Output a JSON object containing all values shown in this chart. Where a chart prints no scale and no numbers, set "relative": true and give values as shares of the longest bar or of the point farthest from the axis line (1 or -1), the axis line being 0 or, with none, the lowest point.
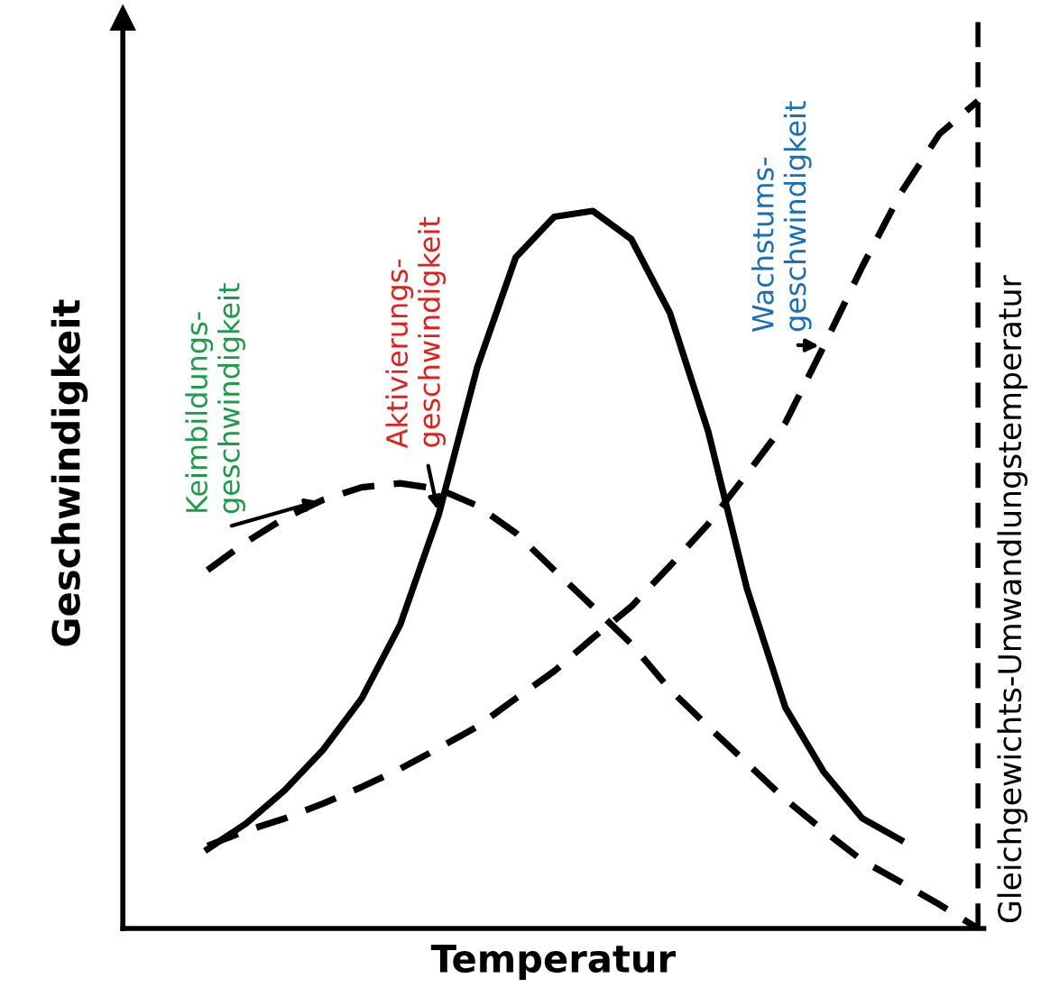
{
  "chart_data": {
    "type": "line",
    "relative": true,
    "xlabel": "Temperatur",
    "ylabel": "Geschwindigkeit",
    "legend": false,
    "marker": "none",
    "categories": [
      null,
      null,
      null,
      null,
      null,
      null,
      null,
      null,
      null,
      null,
      null,
      null,
      null,
      null,
      null,
      null,
      null,
      null,
      null,
      null,
      null
    ],
    "series": [
      {
        "name": "Keimbildungs-\ngeschwindigkeit",
        "color": "#000000",
        "line_style": "dashed",
        "values": [
          0.433,
          0.467,
          0.496,
          0.518,
          0.533,
          0.538,
          0.531,
          0.511,
          0.478,
          0.433,
          0.389,
          0.344,
          0.289,
          0.244,
          0.2,
          0.156,
          0.118,
          0.082,
          0.056,
          0.029,
          0.0
        ]
      },
      {
        "name": "Aktivierungs-\ngeschwindigkeit",
        "color": "#000000",
        "line_style": "solid",
        "values": [
          0.096,
          0.127,
          0.167,
          0.216,
          0.278,
          0.367,
          0.5,
          0.678,
          0.811,
          0.86,
          0.867,
          0.833,
          0.744,
          0.6,
          0.411,
          0.267,
          0.189,
          0.133,
          0.107,
          null,
          null
        ]
      },
      {
        "name": "Wachstums-\ngeschwindigkeit",
        "color": "#000000",
        "line_style": "dashed",
        "values": [
          0.1,
          0.118,
          0.133,
          0.151,
          0.171,
          0.193,
          0.218,
          0.244,
          0.278,
          0.311,
          0.351,
          0.389,
          0.438,
          0.489,
          0.549,
          0.611,
          0.704,
          0.8,
          0.889,
          0.96,
          1.0
        ]
      }
    ],
    "annotations": [
      "Gleichgewichts-Umwandlungstemperatur"
    ]
  }
}
